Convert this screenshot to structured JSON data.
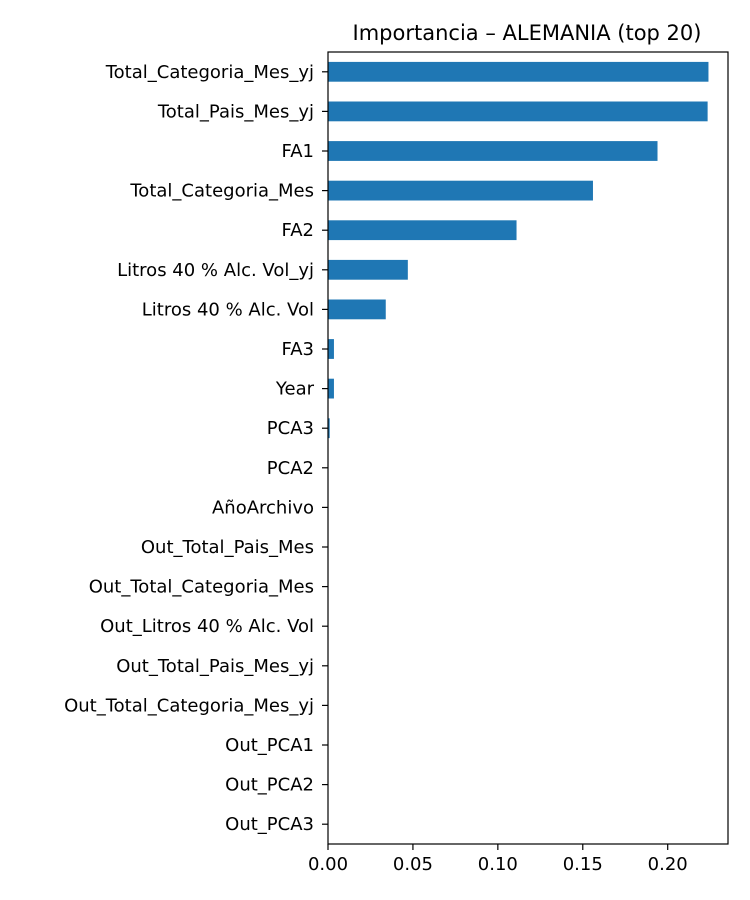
{
  "chart_data": {
    "type": "bar",
    "orientation": "horizontal",
    "title": "Importancia – ALEMANIA (top 20)",
    "xlabel": "",
    "ylabel": "",
    "xlim": [
      0,
      0.2355
    ],
    "xticks": [
      0.0,
      0.05,
      0.1,
      0.15,
      0.2
    ],
    "xtick_labels": [
      "0.00",
      "0.05",
      "0.10",
      "0.15",
      "0.20"
    ],
    "grid": false,
    "bar_color": "#1f77b4",
    "categories": [
      "Total_Categoria_Mes_yj",
      "Total_Pais_Mes_yj",
      "FA1",
      "Total_Categoria_Mes",
      "FA2",
      "Litros 40 % Alc. Vol_yj",
      "Litros 40 % Alc. Vol",
      "FA3",
      "Year",
      "PCA3",
      "PCA2",
      "AñoArchivo",
      "Out_Total_Pais_Mes",
      "Out_Total_Categoria_Mes",
      "Out_Litros 40 % Alc. Vol",
      "Out_Total_Pais_Mes_yj",
      "Out_Total_Categoria_Mes_yj",
      "Out_PCA1",
      "Out_PCA2",
      "Out_PCA3"
    ],
    "values": [
      0.224,
      0.2235,
      0.194,
      0.156,
      0.111,
      0.047,
      0.034,
      0.0035,
      0.0035,
      0.001,
      0,
      0,
      0,
      0,
      0,
      0,
      0,
      0,
      0,
      0
    ]
  }
}
